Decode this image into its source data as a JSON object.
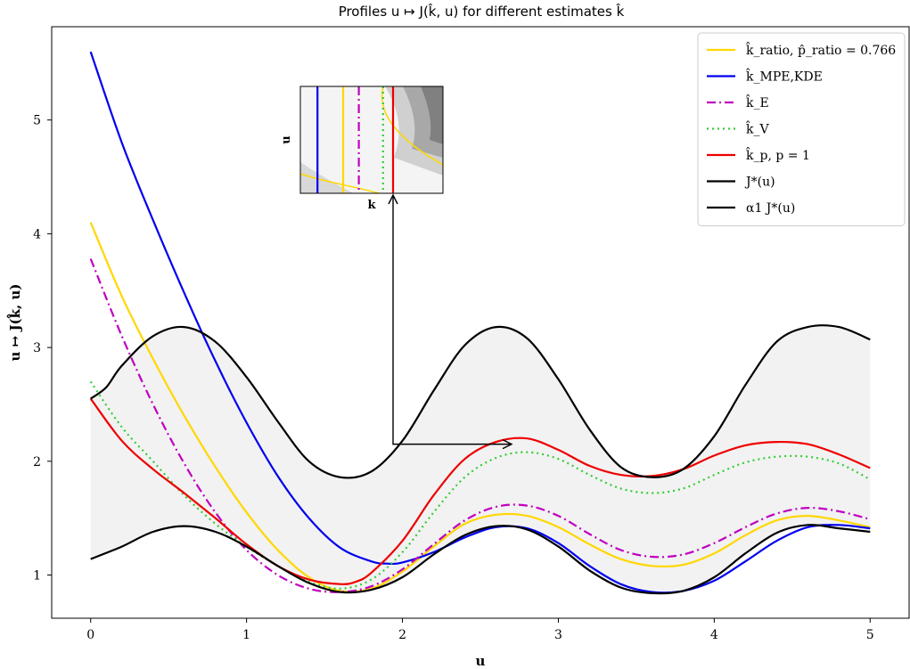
{
  "chart_data": {
    "type": "line",
    "title": "Profiles u ↦ J(k̂, u) for different estimates k̂",
    "xlabel": "u",
    "ylabel": "u ↦ J(k̂, u)",
    "xlim": [
      -0.25,
      5.25
    ],
    "ylim": [
      0.62,
      5.82
    ],
    "xticks": [
      0,
      1,
      2,
      3,
      4,
      5
    ],
    "yticks": [
      1,
      2,
      3,
      4,
      5
    ],
    "grid": false,
    "legend_position": "top-right",
    "band_color": "#f2f2f2",
    "series": [
      {
        "name": "k̂_ratio, p̂_ratio = 0.766",
        "color": "#ffd700",
        "style": "solid",
        "x": [
          0,
          0.2,
          0.4,
          0.6,
          0.8,
          1.0,
          1.2,
          1.4,
          1.6,
          1.8,
          2.0,
          2.2,
          2.4,
          2.6,
          2.8,
          3.0,
          3.2,
          3.4,
          3.6,
          3.8,
          4.0,
          4.2,
          4.4,
          4.6,
          4.8,
          5.0
        ],
        "y": [
          4.1,
          3.45,
          2.9,
          2.4,
          1.95,
          1.55,
          1.22,
          0.98,
          0.86,
          0.88,
          1.03,
          1.25,
          1.45,
          1.53,
          1.52,
          1.42,
          1.27,
          1.14,
          1.08,
          1.09,
          1.19,
          1.35,
          1.48,
          1.52,
          1.48,
          1.42
        ]
      },
      {
        "name": "k̂_MPE,KDE",
        "color": "#0000ee",
        "style": "solid",
        "x": [
          0,
          0.2,
          0.4,
          0.6,
          0.8,
          1.0,
          1.2,
          1.4,
          1.6,
          1.8,
          1.9,
          2.0,
          2.2,
          2.4,
          2.6,
          2.8,
          3.0,
          3.2,
          3.4,
          3.6,
          3.8,
          4.0,
          4.2,
          4.4,
          4.6,
          4.8,
          5.0
        ],
        "y": [
          5.6,
          4.8,
          4.12,
          3.48,
          2.88,
          2.34,
          1.87,
          1.5,
          1.24,
          1.12,
          1.1,
          1.11,
          1.2,
          1.33,
          1.42,
          1.41,
          1.28,
          1.08,
          0.92,
          0.85,
          0.86,
          0.95,
          1.12,
          1.3,
          1.42,
          1.44,
          1.41
        ]
      },
      {
        "name": "k̂_E",
        "color": "#c000c0",
        "style": "dashdot",
        "x": [
          0,
          0.2,
          0.4,
          0.6,
          0.8,
          1.0,
          1.2,
          1.4,
          1.6,
          1.8,
          2.0,
          2.2,
          2.4,
          2.6,
          2.8,
          3.0,
          3.2,
          3.4,
          3.6,
          3.8,
          4.0,
          4.2,
          4.4,
          4.6,
          4.8,
          5.0
        ],
        "y": [
          3.78,
          3.1,
          2.5,
          1.98,
          1.55,
          1.22,
          1.0,
          0.88,
          0.85,
          0.9,
          1.05,
          1.27,
          1.48,
          1.6,
          1.61,
          1.52,
          1.36,
          1.22,
          1.16,
          1.18,
          1.28,
          1.42,
          1.54,
          1.59,
          1.56,
          1.49
        ]
      },
      {
        "name": "k̂_V",
        "color": "#33cc33",
        "style": "dotted",
        "x": [
          0,
          0.2,
          0.4,
          0.6,
          0.8,
          1.0,
          1.2,
          1.4,
          1.6,
          1.8,
          2.0,
          2.2,
          2.4,
          2.6,
          2.8,
          3.0,
          3.2,
          3.4,
          3.6,
          3.8,
          4.0,
          4.2,
          4.4,
          4.6,
          4.8,
          5.0
        ],
        "y": [
          2.7,
          2.3,
          2.0,
          1.7,
          1.45,
          1.25,
          1.08,
          0.94,
          0.88,
          0.96,
          1.2,
          1.55,
          1.86,
          2.03,
          2.08,
          2.02,
          1.88,
          1.76,
          1.72,
          1.76,
          1.88,
          1.99,
          2.04,
          2.04,
          1.98,
          1.84
        ]
      },
      {
        "name": "k̂_p, p = 1",
        "color": "#ee0000",
        "style": "solid",
        "x": [
          0,
          0.2,
          0.4,
          0.6,
          0.8,
          1.0,
          1.2,
          1.4,
          1.6,
          1.7,
          1.8,
          2.0,
          2.2,
          2.4,
          2.6,
          2.8,
          3.0,
          3.2,
          3.4,
          3.6,
          3.8,
          4.0,
          4.2,
          4.4,
          4.6,
          4.8,
          5.0
        ],
        "y": [
          2.55,
          2.18,
          1.93,
          1.72,
          1.5,
          1.27,
          1.08,
          0.96,
          0.92,
          0.94,
          1.02,
          1.3,
          1.7,
          2.02,
          2.17,
          2.2,
          2.1,
          1.96,
          1.88,
          1.87,
          1.93,
          2.05,
          2.14,
          2.17,
          2.15,
          2.06,
          1.94
        ]
      },
      {
        "name": "J*(u)",
        "color": "#000000",
        "style": "solid",
        "x": [
          0,
          0.2,
          0.4,
          0.6,
          0.8,
          1.0,
          1.2,
          1.4,
          1.6,
          1.8,
          2.0,
          2.2,
          2.4,
          2.6,
          2.8,
          3.0,
          3.2,
          3.4,
          3.6,
          3.8,
          4.0,
          4.2,
          4.4,
          4.6,
          4.8,
          5.0
        ],
        "y": [
          1.14,
          1.25,
          1.38,
          1.43,
          1.38,
          1.25,
          1.08,
          0.93,
          0.85,
          0.87,
          0.98,
          1.18,
          1.35,
          1.43,
          1.4,
          1.25,
          1.04,
          0.89,
          0.84,
          0.86,
          0.98,
          1.19,
          1.37,
          1.44,
          1.41,
          1.38
        ]
      },
      {
        "name": "α1 J*(u)",
        "color": "#000000",
        "style": "solid",
        "x": [
          0,
          0.1,
          0.2,
          0.4,
          0.6,
          0.8,
          1.0,
          1.2,
          1.4,
          1.6,
          1.8,
          2.0,
          2.2,
          2.4,
          2.6,
          2.8,
          3.0,
          3.2,
          3.4,
          3.6,
          3.8,
          4.0,
          4.2,
          4.4,
          4.6,
          4.8,
          5.0
        ],
        "y": [
          2.55,
          2.65,
          2.84,
          3.1,
          3.18,
          3.05,
          2.74,
          2.35,
          2.0,
          1.86,
          1.91,
          2.18,
          2.62,
          3.02,
          3.18,
          3.08,
          2.72,
          2.28,
          1.95,
          1.86,
          1.93,
          2.22,
          2.67,
          3.05,
          3.18,
          3.18,
          3.07
        ]
      }
    ]
  },
  "inset": {
    "xlabel": "k",
    "ylabel": "u",
    "arrow_target": [
      2.7,
      2.15
    ],
    "arrow_corner": [
      1.85,
      2.15
    ],
    "lines": [
      {
        "color": "#0000ee",
        "style": "solid",
        "pos": 0.12
      },
      {
        "color": "#ffd700",
        "style": "solid",
        "pos": 0.3
      },
      {
        "color": "#c000c0",
        "style": "dashdot",
        "pos": 0.41
      },
      {
        "color": "#33cc33",
        "style": "dotted",
        "pos": 0.58
      },
      {
        "color": "#ee0000",
        "style": "solid",
        "pos": 0.65
      }
    ]
  }
}
